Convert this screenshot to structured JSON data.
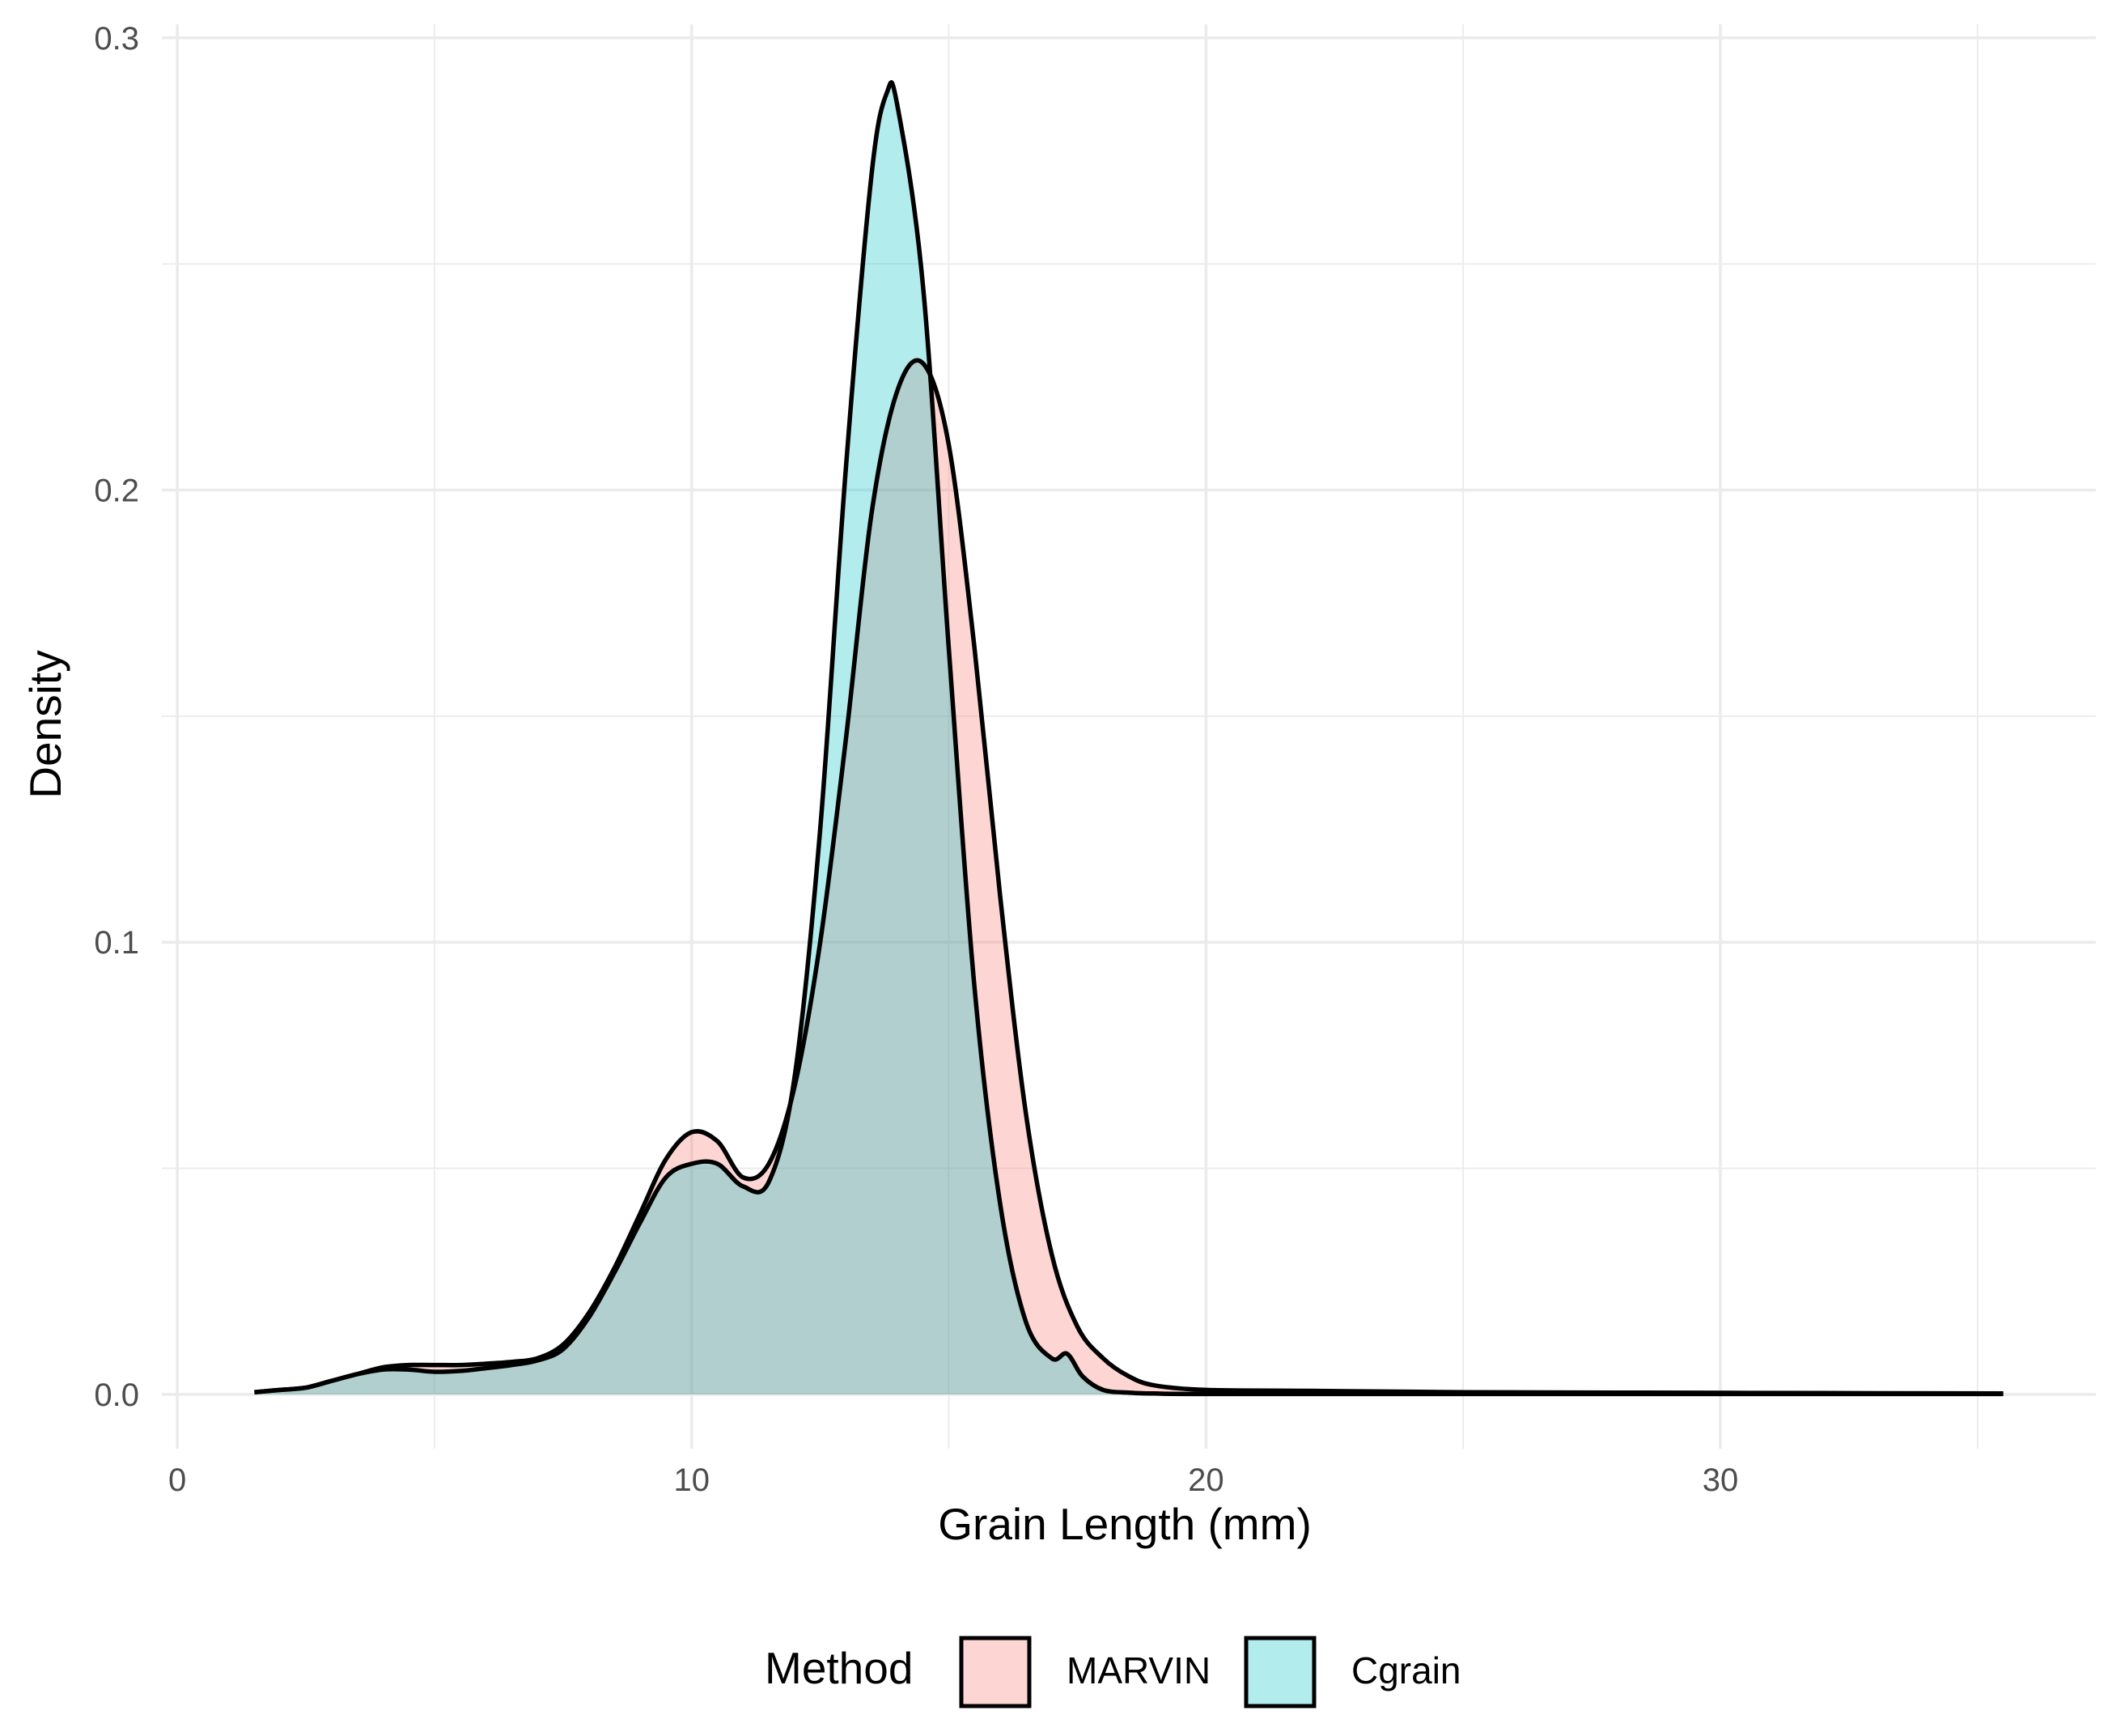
{
  "chart_data": {
    "type": "area",
    "title": "",
    "xlabel": "Grain Length (mm)",
    "ylabel": "Density",
    "xlim": [
      -0.3,
      37.3
    ],
    "ylim": [
      -0.012,
      0.303
    ],
    "x_ticks": [
      0,
      10,
      20,
      30
    ],
    "x_tick_labels": [
      "0",
      "10",
      "20",
      "30"
    ],
    "y_ticks": [
      0.0,
      0.1,
      0.2,
      0.3
    ],
    "y_tick_labels": [
      "0.0",
      "0.1",
      "0.2",
      "0.3"
    ],
    "grid": true,
    "legend": {
      "title": "Method",
      "position": "bottom",
      "entries": [
        "MARVIN",
        "Cgrain"
      ]
    },
    "series": [
      {
        "name": "MARVIN",
        "fill": "#f8766d",
        "opacity": 0.3,
        "x": [
          1.5,
          2,
          2.5,
          3,
          3.5,
          4,
          4.5,
          5,
          5.5,
          6,
          6.5,
          7,
          7.5,
          8,
          8.5,
          9,
          9.5,
          10,
          10.5,
          11,
          11.5,
          12,
          12.5,
          13,
          13.5,
          14,
          14.5,
          15,
          15.5,
          16,
          16.5,
          17,
          17.5,
          18,
          18.5,
          19,
          20,
          22,
          25,
          28,
          32,
          35.5
        ],
        "values": [
          0.0005,
          0.001,
          0.0015,
          0.003,
          0.0045,
          0.006,
          0.0065,
          0.0065,
          0.0065,
          0.0068,
          0.0072,
          0.008,
          0.011,
          0.018,
          0.028,
          0.04,
          0.052,
          0.058,
          0.056,
          0.048,
          0.051,
          0.068,
          0.1,
          0.145,
          0.195,
          0.222,
          0.228,
          0.21,
          0.165,
          0.11,
          0.062,
          0.031,
          0.015,
          0.008,
          0.004,
          0.002,
          0.001,
          0.0008,
          0.0005,
          0.0004,
          0.0003,
          0.0002
        ]
      },
      {
        "name": "Cgrain",
        "fill": "#00bfc4",
        "opacity": 0.3,
        "x": [
          1.5,
          2,
          2.5,
          3,
          3.5,
          4,
          4.5,
          5,
          5.5,
          6,
          6.5,
          7,
          7.5,
          8,
          8.5,
          9,
          9.5,
          10,
          10.5,
          11,
          11.5,
          12,
          12.5,
          13,
          13.5,
          13.8,
          14,
          14.5,
          15,
          15.5,
          16,
          16.5,
          17,
          17.3,
          17.6,
          18,
          18.5,
          19,
          20,
          25,
          30,
          35.5
        ],
        "values": [
          0.0005,
          0.001,
          0.0015,
          0.003,
          0.0045,
          0.0055,
          0.0055,
          0.005,
          0.0052,
          0.0058,
          0.0065,
          0.0075,
          0.01,
          0.017,
          0.027,
          0.038,
          0.048,
          0.051,
          0.051,
          0.046,
          0.047,
          0.07,
          0.125,
          0.205,
          0.27,
          0.288,
          0.285,
          0.245,
          0.165,
          0.09,
          0.042,
          0.016,
          0.008,
          0.009,
          0.004,
          0.001,
          0.0004,
          0.0002,
          0.0001,
          0.0001,
          0.0001,
          0.0001
        ]
      }
    ]
  }
}
